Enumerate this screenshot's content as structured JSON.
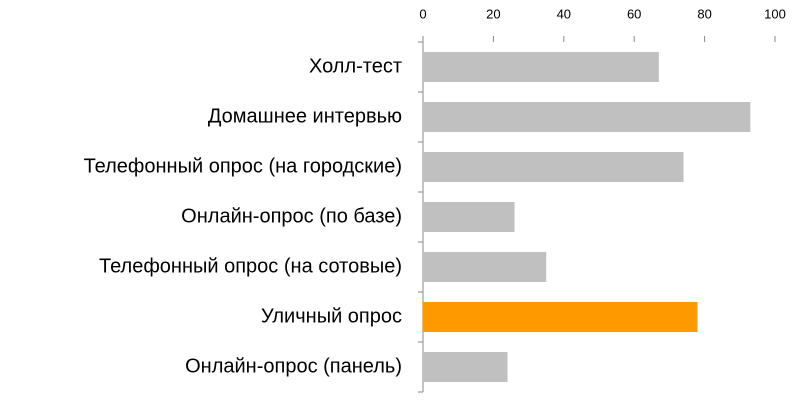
{
  "chart_data": {
    "type": "barh",
    "categories": [
      "Холл-тест",
      "Домашнее интервью",
      "Телефонный опрос (на городские)",
      "Онлайн-опрос (по базе)",
      "Телефонный опрос (на сотовые)",
      "Уличный опрос",
      "Онлайн-опрос (панель)"
    ],
    "values": [
      67,
      93,
      74,
      26,
      35,
      78,
      24
    ],
    "colors": [
      "#c0c0c0",
      "#c0c0c0",
      "#c0c0c0",
      "#c0c0c0",
      "#c0c0c0",
      "#ff9900",
      "#c0c0c0"
    ],
    "xlim": [
      0,
      100
    ],
    "xticks": [
      0,
      20,
      40,
      60,
      80,
      100
    ]
  }
}
